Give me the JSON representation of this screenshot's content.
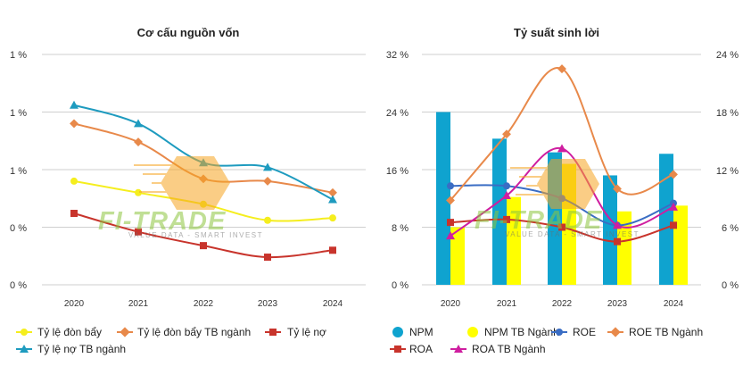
{
  "watermark": {
    "brand": "FI-TRADE",
    "tagline": "VALUE DATA - SMART INVEST"
  },
  "chart_data": [
    {
      "type": "line",
      "title": "Cơ cấu nguồn vốn",
      "categories": [
        "2020",
        "2021",
        "2022",
        "2023",
        "2024"
      ],
      "y_tick_labels": [
        "1 %",
        "1 %",
        "1 %",
        "0 %",
        "0 %"
      ],
      "ylim": [
        0,
        1.0
      ],
      "grid": true,
      "legend": "bottom",
      "series": [
        {
          "name": "Tỷ lệ đòn bẩy",
          "color": "#f5ee1e",
          "marker": "circle",
          "values": [
            0.45,
            0.4,
            0.35,
            0.28,
            0.29
          ]
        },
        {
          "name": "Tỷ lệ đòn bẩy TB ngành",
          "color": "#e8894a",
          "marker": "diamond",
          "values": [
            0.7,
            0.62,
            0.46,
            0.45,
            0.4
          ]
        },
        {
          "name": "Tỷ lệ nợ",
          "color": "#c8342c",
          "marker": "square",
          "values": [
            0.31,
            0.23,
            0.17,
            0.12,
            0.15
          ]
        },
        {
          "name": "Tỷ lệ nợ TB ngành",
          "color": "#1e9bbf",
          "marker": "triangle",
          "values": [
            0.78,
            0.7,
            0.53,
            0.51,
            0.37
          ]
        }
      ]
    },
    {
      "type": "bar",
      "title": "Tỷ suất sinh lời",
      "categories": [
        "2020",
        "2021",
        "2022",
        "2023",
        "2024"
      ],
      "y_tick_labels_left": [
        "32 %",
        "24 %",
        "16 %",
        "8 %",
        "0 %"
      ],
      "y_tick_labels_right": [
        "24 %",
        "18 %",
        "12 %",
        "6 %",
        "0 %"
      ],
      "ylim_left": [
        0,
        32
      ],
      "ylim_right": [
        0,
        24
      ],
      "grid": true,
      "legend": "bottom",
      "series": [
        {
          "name": "NPM",
          "kind": "bar",
          "axis": "left",
          "color": "#0fa3cf",
          "marker": "circle",
          "values": [
            24.0,
            20.3,
            18.4,
            15.2,
            18.2
          ]
        },
        {
          "name": "NPM TB Ngành",
          "kind": "bar",
          "axis": "left",
          "color": "#ffff00",
          "marker": "circle",
          "values": [
            8.0,
            12.2,
            16.8,
            10.2,
            11.0
          ]
        },
        {
          "name": "ROE",
          "kind": "line",
          "axis": "right",
          "color": "#3a6dc4",
          "marker": "circle",
          "values": [
            10.3,
            10.3,
            9.0,
            6.2,
            8.5
          ]
        },
        {
          "name": "ROE TB Ngành",
          "kind": "line",
          "axis": "right",
          "color": "#e8894a",
          "marker": "diamond",
          "values": [
            8.8,
            15.7,
            22.5,
            10.0,
            11.5
          ]
        },
        {
          "name": "ROA",
          "kind": "line",
          "axis": "right",
          "color": "#c8342c",
          "marker": "square",
          "values": [
            6.5,
            6.8,
            6.0,
            4.5,
            6.2
          ]
        },
        {
          "name": "ROA TB Ngành",
          "kind": "line",
          "axis": "right",
          "color": "#cf1ea0",
          "marker": "triangle",
          "values": [
            5.1,
            9.3,
            14.2,
            6.2,
            8.1
          ]
        }
      ]
    }
  ]
}
